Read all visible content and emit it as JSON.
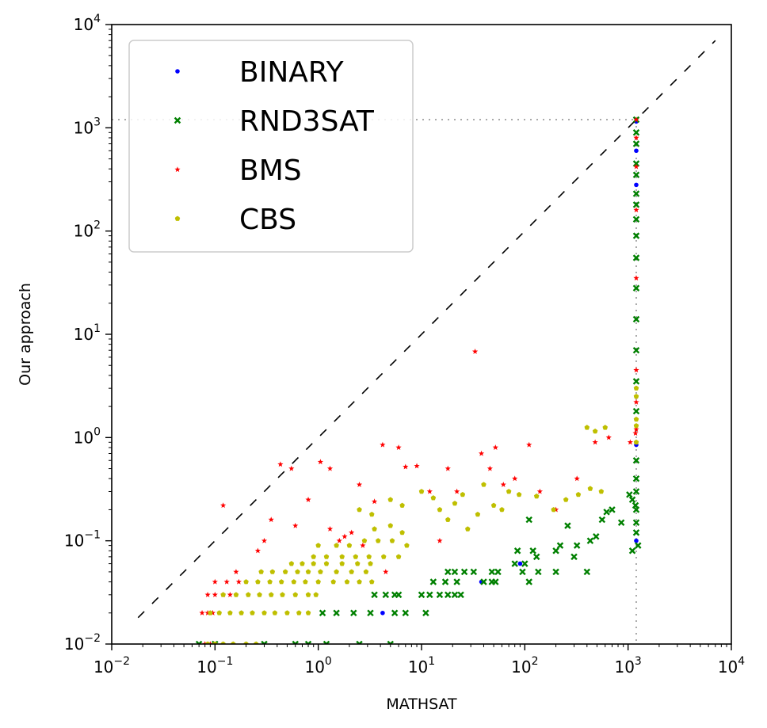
{
  "chart_data": {
    "type": "scatter",
    "xlabel": "MATHSAT",
    "ylabel": "Our approach",
    "xscale": "log",
    "yscale": "log",
    "xlim": [
      0.01,
      10000
    ],
    "ylim": [
      0.01,
      10000
    ],
    "grid": false,
    "legend_position": "top-left",
    "ticks": [
      {
        "value": 0.01,
        "base": "10",
        "exp": "−2"
      },
      {
        "value": 0.1,
        "base": "10",
        "exp": "−1"
      },
      {
        "value": 1,
        "base": "10",
        "exp": "0"
      },
      {
        "value": 10,
        "base": "10",
        "exp": "1"
      },
      {
        "value": 100,
        "base": "10",
        "exp": "2"
      },
      {
        "value": 1000,
        "base": "10",
        "exp": "3"
      },
      {
        "value": 10000,
        "base": "10",
        "exp": "4"
      }
    ],
    "reference_lines": {
      "diagonal": {
        "from": [
          0.018,
          0.018
        ],
        "to": [
          7000,
          7000
        ],
        "style": "dashed",
        "color": "#000000"
      },
      "timeout": {
        "value": 1200,
        "style": "dotted",
        "color": "#555555"
      }
    },
    "series": [
      {
        "name": "BINARY",
        "marker": "circle",
        "color": "#0000ff",
        "points": [
          [
            4.2,
            0.02
          ],
          [
            38,
            0.04
          ],
          [
            90,
            0.06
          ],
          [
            1200,
            1150
          ],
          [
            1200,
            600
          ],
          [
            1200,
            280
          ],
          [
            1200,
            0.85
          ],
          [
            1200,
            0.1
          ]
        ]
      },
      {
        "name": "RND3SAT",
        "marker": "x",
        "color": "#008000",
        "points": [
          [
            0.07,
            0.01
          ],
          [
            0.1,
            0.01
          ],
          [
            0.3,
            0.01
          ],
          [
            0.6,
            0.01
          ],
          [
            0.8,
            0.01
          ],
          [
            1.2,
            0.01
          ],
          [
            2.5,
            0.01
          ],
          [
            5,
            0.01
          ],
          [
            1.1,
            0.02
          ],
          [
            1.5,
            0.02
          ],
          [
            2.2,
            0.02
          ],
          [
            3.2,
            0.02
          ],
          [
            5.5,
            0.02
          ],
          [
            7,
            0.02
          ],
          [
            11,
            0.02
          ],
          [
            3.5,
            0.03
          ],
          [
            4.5,
            0.03
          ],
          [
            5.5,
            0.03
          ],
          [
            6,
            0.03
          ],
          [
            10,
            0.03
          ],
          [
            12,
            0.03
          ],
          [
            15,
            0.03
          ],
          [
            18,
            0.03
          ],
          [
            21,
            0.03
          ],
          [
            24,
            0.03
          ],
          [
            13,
            0.04
          ],
          [
            17,
            0.04
          ],
          [
            22,
            0.04
          ],
          [
            40,
            0.04
          ],
          [
            48,
            0.04
          ],
          [
            52,
            0.04
          ],
          [
            110,
            0.04
          ],
          [
            18,
            0.05
          ],
          [
            21,
            0.05
          ],
          [
            26,
            0.05
          ],
          [
            32,
            0.05
          ],
          [
            48,
            0.05
          ],
          [
            55,
            0.05
          ],
          [
            95,
            0.05
          ],
          [
            135,
            0.05
          ],
          [
            200,
            0.05
          ],
          [
            400,
            0.05
          ],
          [
            80,
            0.06
          ],
          [
            100,
            0.06
          ],
          [
            130,
            0.07
          ],
          [
            300,
            0.07
          ],
          [
            85,
            0.08
          ],
          [
            120,
            0.08
          ],
          [
            200,
            0.08
          ],
          [
            220,
            0.09
          ],
          [
            320,
            0.09
          ],
          [
            430,
            0.1
          ],
          [
            490,
            0.11
          ],
          [
            110,
            0.16
          ],
          [
            260,
            0.14
          ],
          [
            560,
            0.16
          ],
          [
            620,
            0.19
          ],
          [
            700,
            0.2
          ],
          [
            860,
            0.15
          ],
          [
            1030,
            0.28
          ],
          [
            1100,
            0.25
          ],
          [
            1180,
            0.22
          ],
          [
            1100,
            0.08
          ],
          [
            1250,
            0.09
          ],
          [
            1200,
            0.12
          ],
          [
            1200,
            1200
          ],
          [
            1200,
            900
          ],
          [
            1200,
            700
          ],
          [
            1200,
            450
          ],
          [
            1200,
            350
          ],
          [
            1200,
            230
          ],
          [
            1200,
            180
          ],
          [
            1200,
            130
          ],
          [
            1200,
            90
          ],
          [
            1200,
            55
          ],
          [
            1200,
            28
          ],
          [
            1200,
            14
          ],
          [
            1200,
            7
          ],
          [
            1200,
            3.5
          ],
          [
            1200,
            1.8
          ],
          [
            1200,
            0.6
          ],
          [
            1200,
            0.4
          ],
          [
            1200,
            0.3
          ],
          [
            1200,
            0.2
          ],
          [
            1200,
            0.15
          ]
        ]
      },
      {
        "name": "BMS",
        "marker": "star",
        "color": "#ff0000",
        "points": [
          [
            0.12,
            0.22
          ],
          [
            0.16,
            0.05
          ],
          [
            0.26,
            0.08
          ],
          [
            0.3,
            0.1
          ],
          [
            0.35,
            0.16
          ],
          [
            0.43,
            0.55
          ],
          [
            0.55,
            0.5
          ],
          [
            0.6,
            0.14
          ],
          [
            0.8,
            0.25
          ],
          [
            1.05,
            0.58
          ],
          [
            1.3,
            0.5
          ],
          [
            1.3,
            0.13
          ],
          [
            1.6,
            0.1
          ],
          [
            1.8,
            0.11
          ],
          [
            2.1,
            0.12
          ],
          [
            2.5,
            0.35
          ],
          [
            2.7,
            0.09
          ],
          [
            3.5,
            0.24
          ],
          [
            4.2,
            0.85
          ],
          [
            4.5,
            0.05
          ],
          [
            6,
            0.8
          ],
          [
            7,
            0.52
          ],
          [
            9,
            0.53
          ],
          [
            12,
            0.3
          ],
          [
            15,
            0.1
          ],
          [
            18,
            0.5
          ],
          [
            22,
            0.3
          ],
          [
            33,
            6.8
          ],
          [
            38,
            0.7
          ],
          [
            46,
            0.5
          ],
          [
            52,
            0.8
          ],
          [
            62,
            0.35
          ],
          [
            80,
            0.4
          ],
          [
            110,
            0.85
          ],
          [
            140,
            0.3
          ],
          [
            200,
            0.2
          ],
          [
            320,
            0.4
          ],
          [
            480,
            0.9
          ],
          [
            650,
            1
          ],
          [
            1050,
            0.9
          ],
          [
            1180,
            1.1
          ],
          [
            0.08,
            0.01
          ],
          [
            0.09,
            0.01
          ],
          [
            0.075,
            0.02
          ],
          [
            0.085,
            0.02
          ],
          [
            0.095,
            0.02
          ],
          [
            0.085,
            0.03
          ],
          [
            0.1,
            0.03
          ],
          [
            0.12,
            0.03
          ],
          [
            0.14,
            0.03
          ],
          [
            0.1,
            0.04
          ],
          [
            0.13,
            0.04
          ],
          [
            0.17,
            0.04
          ],
          [
            1200,
            1200
          ],
          [
            1200,
            800
          ],
          [
            1200,
            420
          ],
          [
            1200,
            160
          ],
          [
            1200,
            35
          ],
          [
            1200,
            4.5
          ],
          [
            1200,
            2.2
          ],
          [
            1200,
            1.2
          ]
        ]
      },
      {
        "name": "CBS",
        "marker": "pentagon",
        "color": "#bfbf00",
        "points": [
          [
            0.085,
            0.01
          ],
          [
            0.1,
            0.01
          ],
          [
            0.12,
            0.01
          ],
          [
            0.15,
            0.01
          ],
          [
            0.2,
            0.01
          ],
          [
            0.25,
            0.01
          ],
          [
            0.09,
            0.02
          ],
          [
            0.11,
            0.02
          ],
          [
            0.14,
            0.02
          ],
          [
            0.18,
            0.02
          ],
          [
            0.23,
            0.02
          ],
          [
            0.3,
            0.02
          ],
          [
            0.38,
            0.02
          ],
          [
            0.5,
            0.02
          ],
          [
            0.65,
            0.02
          ],
          [
            0.8,
            0.02
          ],
          [
            0.12,
            0.03
          ],
          [
            0.16,
            0.03
          ],
          [
            0.21,
            0.03
          ],
          [
            0.27,
            0.03
          ],
          [
            0.35,
            0.03
          ],
          [
            0.45,
            0.03
          ],
          [
            0.6,
            0.03
          ],
          [
            0.8,
            0.03
          ],
          [
            0.95,
            0.03
          ],
          [
            0.2,
            0.04
          ],
          [
            0.26,
            0.04
          ],
          [
            0.34,
            0.04
          ],
          [
            0.44,
            0.04
          ],
          [
            0.58,
            0.04
          ],
          [
            0.75,
            0.04
          ],
          [
            1,
            0.04
          ],
          [
            1.4,
            0.04
          ],
          [
            1.9,
            0.04
          ],
          [
            2.5,
            0.04
          ],
          [
            3.3,
            0.04
          ],
          [
            0.28,
            0.05
          ],
          [
            0.36,
            0.05
          ],
          [
            0.48,
            0.05
          ],
          [
            0.63,
            0.05
          ],
          [
            0.8,
            0.05
          ],
          [
            1.05,
            0.05
          ],
          [
            1.5,
            0.05
          ],
          [
            2.1,
            0.05
          ],
          [
            2.9,
            0.05
          ],
          [
            0.55,
            0.06
          ],
          [
            0.7,
            0.06
          ],
          [
            0.9,
            0.06
          ],
          [
            1.2,
            0.06
          ],
          [
            1.7,
            0.06
          ],
          [
            2.4,
            0.06
          ],
          [
            3.2,
            0.06
          ],
          [
            0.9,
            0.07
          ],
          [
            1.2,
            0.07
          ],
          [
            1.7,
            0.07
          ],
          [
            2.3,
            0.07
          ],
          [
            3.1,
            0.07
          ],
          [
            4.3,
            0.07
          ],
          [
            6,
            0.07
          ],
          [
            1,
            0.09
          ],
          [
            1.5,
            0.09
          ],
          [
            2,
            0.09
          ],
          [
            2.8,
            0.1
          ],
          [
            3.8,
            0.1
          ],
          [
            5.2,
            0.1
          ],
          [
            7.2,
            0.09
          ],
          [
            3.5,
            0.13
          ],
          [
            5,
            0.14
          ],
          [
            6.5,
            0.12
          ],
          [
            2.5,
            0.2
          ],
          [
            3.3,
            0.18
          ],
          [
            5,
            0.25
          ],
          [
            6.5,
            0.22
          ],
          [
            10,
            0.3
          ],
          [
            13,
            0.26
          ],
          [
            15,
            0.2
          ],
          [
            18,
            0.16
          ],
          [
            21,
            0.23
          ],
          [
            25,
            0.28
          ],
          [
            28,
            0.13
          ],
          [
            35,
            0.18
          ],
          [
            40,
            0.35
          ],
          [
            50,
            0.22
          ],
          [
            60,
            0.2
          ],
          [
            70,
            0.3
          ],
          [
            88,
            0.28
          ],
          [
            130,
            0.27
          ],
          [
            190,
            0.2
          ],
          [
            250,
            0.25
          ],
          [
            330,
            0.28
          ],
          [
            430,
            0.32
          ],
          [
            550,
            0.3
          ],
          [
            600,
            1.25
          ],
          [
            400,
            1.25
          ],
          [
            480,
            1.15
          ],
          [
            1200,
            3
          ],
          [
            1200,
            2.5
          ],
          [
            1200,
            1.5
          ],
          [
            1200,
            1.3
          ],
          [
            1200,
            0.9
          ]
        ]
      }
    ]
  }
}
